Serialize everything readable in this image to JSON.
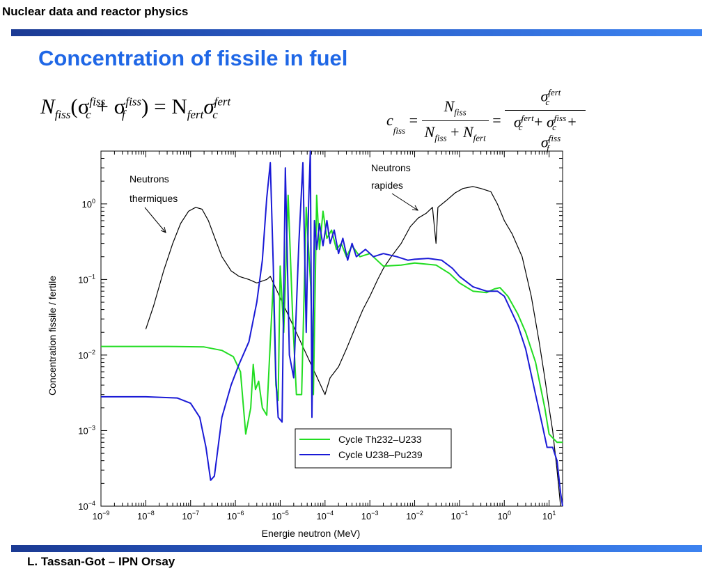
{
  "header": {
    "title": "Nuclear data and reactor physics"
  },
  "slide_title": "Concentration of fissile in fuel",
  "equations": {
    "eq1": {
      "lhs_N": "N",
      "lhs_N_sub": "fiss",
      "sigma1_sup": "fiss",
      "sigma1_sub": "c",
      "sigma2_sup": "fiss",
      "sigma2_sub": "f",
      "rhs_N_sub": "fert",
      "rhs_sigma_sup": "fert",
      "rhs_sigma_sub": "c"
    },
    "eq2": {
      "c_sub": "fiss",
      "num1": "N",
      "num1_sub": "fiss",
      "den1a_sub": "fiss",
      "den1b_sub": "fert",
      "num2_sup": "fert",
      "num2_sub": "c",
      "den2a_sup": "fert",
      "den2a_sub": "c",
      "den2b_sup": "fiss",
      "den2b_sub": "c",
      "den2c_sup": "fiss",
      "den2c_sub": "f"
    }
  },
  "footer": {
    "author": "L. Tassan-Got – IPN Orsay"
  },
  "chart_data": {
    "type": "line",
    "xlabel": "Energie neutron (MeV)",
    "ylabel": "Concentration fissile / fertile",
    "xscale": "log",
    "yscale": "log",
    "xlim": [
      1e-09,
      20
    ],
    "ylim": [
      0.0001,
      5
    ],
    "x_ticks": [
      {
        "base": "10",
        "exp": "−9"
      },
      {
        "base": "10",
        "exp": "−8"
      },
      {
        "base": "10",
        "exp": "−7"
      },
      {
        "base": "10",
        "exp": "−6"
      },
      {
        "base": "10",
        "exp": "−5"
      },
      {
        "base": "10",
        "exp": "−4"
      },
      {
        "base": "10",
        "exp": "−3"
      },
      {
        "base": "10",
        "exp": "−2"
      },
      {
        "base": "10",
        "exp": "−1"
      },
      {
        "base": "10",
        "exp": "0"
      },
      {
        "base": "10",
        "exp": "1"
      }
    ],
    "y_ticks": [
      {
        "base": "10",
        "exp": "0"
      },
      {
        "base": "10",
        "exp": "−1"
      },
      {
        "base": "10",
        "exp": "−2"
      },
      {
        "base": "10",
        "exp": "−3"
      },
      {
        "base": "10",
        "exp": "−4"
      }
    ],
    "annotations": [
      {
        "line1": "Neutrons",
        "line2": "thermiques"
      },
      {
        "line1": "Neutrons",
        "line2": "rapides"
      }
    ],
    "legend_position": "center-bottom",
    "series": [
      {
        "name": "Cycle Th232–U233",
        "color": "#22dd22",
        "points": [
          [
            1e-09,
            0.013
          ],
          [
            3e-08,
            0.013
          ],
          [
            2e-07,
            0.0128
          ],
          [
            5e-07,
            0.0115
          ],
          [
            9e-07,
            0.0095
          ],
          [
            1.3e-06,
            0.006
          ],
          [
            1.7e-06,
            0.0009
          ],
          [
            2.2e-06,
            0.002
          ],
          [
            2.5e-06,
            0.0075
          ],
          [
            2.8e-06,
            0.0035
          ],
          [
            3.3e-06,
            0.0045
          ],
          [
            4e-06,
            0.002
          ],
          [
            5e-06,
            0.0016
          ],
          [
            6e-06,
            0.015
          ],
          [
            7e-06,
            0.09
          ],
          [
            8e-06,
            0.004
          ],
          [
            9e-06,
            0.0025
          ],
          [
            1e-05,
            0.15
          ],
          [
            1.2e-05,
            0.02
          ],
          [
            1.5e-05,
            1.3
          ],
          [
            1.9e-05,
            0.03
          ],
          [
            2.3e-05,
            0.003
          ],
          [
            3e-05,
            0.003
          ],
          [
            3.8e-05,
            0.9
          ],
          [
            4.8e-05,
            0.08
          ],
          [
            5.5e-05,
            0.003
          ],
          [
            6.5e-05,
            1.3
          ],
          [
            7.5e-05,
            0.25
          ],
          [
            9e-05,
            0.8
          ],
          [
            0.00011,
            0.35
          ],
          [
            0.00014,
            0.45
          ],
          [
            0.00018,
            0.25
          ],
          [
            0.00023,
            0.3
          ],
          [
            0.0003,
            0.2
          ],
          [
            0.0004,
            0.28
          ],
          [
            0.0006,
            0.2
          ],
          [
            0.001,
            0.22
          ],
          [
            0.002,
            0.15
          ],
          [
            0.005,
            0.155
          ],
          [
            0.01,
            0.165
          ],
          [
            0.03,
            0.155
          ],
          [
            0.06,
            0.12
          ],
          [
            0.1,
            0.09
          ],
          [
            0.2,
            0.07
          ],
          [
            0.4,
            0.067
          ],
          [
            0.6,
            0.075
          ],
          [
            0.8,
            0.078
          ],
          [
            1.2,
            0.06
          ],
          [
            2,
            0.035
          ],
          [
            3,
            0.02
          ],
          [
            5,
            0.008
          ],
          [
            8,
            0.002
          ],
          [
            10,
            0.0009
          ],
          [
            15,
            0.0007
          ],
          [
            20,
            0.0007
          ]
        ]
      },
      {
        "name": "Cycle U238–Pu239",
        "color": "#1a1ad6",
        "points": [
          [
            1e-09,
            0.0028
          ],
          [
            1e-08,
            0.0028
          ],
          [
            5e-08,
            0.0027
          ],
          [
            1e-07,
            0.0023
          ],
          [
            1.6e-07,
            0.0015
          ],
          [
            2.2e-07,
            0.0006
          ],
          [
            2.8e-07,
            0.00022
          ],
          [
            3.4e-07,
            0.00025
          ],
          [
            5e-07,
            0.0015
          ],
          [
            8e-07,
            0.004
          ],
          [
            1.2e-06,
            0.0075
          ],
          [
            2e-06,
            0.015
          ],
          [
            3e-06,
            0.05
          ],
          [
            4e-06,
            0.18
          ],
          [
            5e-06,
            1.2
          ],
          [
            6e-06,
            3.5
          ],
          [
            7e-06,
            0.15
          ],
          [
            8e-06,
            0.005
          ],
          [
            9e-06,
            0.0015
          ],
          [
            1.1e-05,
            0.0013
          ],
          [
            1.3e-05,
            3.0
          ],
          [
            1.6e-05,
            0.01
          ],
          [
            2e-05,
            0.005
          ],
          [
            2.6e-05,
            0.3
          ],
          [
            3.2e-05,
            3.5
          ],
          [
            3.8e-05,
            0.02
          ],
          [
            4.3e-05,
            1.0
          ],
          [
            4.7e-05,
            5
          ],
          [
            5.1e-05,
            0.0015
          ],
          [
            5.8e-05,
            0.6
          ],
          [
            6.5e-05,
            0.25
          ],
          [
            7.5e-05,
            0.55
          ],
          [
            9e-05,
            0.28
          ],
          [
            0.00011,
            0.6
          ],
          [
            0.00013,
            0.3
          ],
          [
            0.00016,
            0.45
          ],
          [
            0.0002,
            0.22
          ],
          [
            0.00025,
            0.35
          ],
          [
            0.00032,
            0.18
          ],
          [
            0.0004,
            0.3
          ],
          [
            0.0005,
            0.2
          ],
          [
            0.0008,
            0.25
          ],
          [
            0.0012,
            0.2
          ],
          [
            0.002,
            0.22
          ],
          [
            0.004,
            0.2
          ],
          [
            0.007,
            0.18
          ],
          [
            0.01,
            0.185
          ],
          [
            0.02,
            0.19
          ],
          [
            0.04,
            0.18
          ],
          [
            0.07,
            0.14
          ],
          [
            0.1,
            0.11
          ],
          [
            0.2,
            0.08
          ],
          [
            0.4,
            0.07
          ],
          [
            0.7,
            0.07
          ],
          [
            1,
            0.06
          ],
          [
            2,
            0.025
          ],
          [
            3,
            0.012
          ],
          [
            5,
            0.003
          ],
          [
            7,
            0.0012
          ],
          [
            9,
            0.0006
          ],
          [
            12,
            0.0006
          ],
          [
            15,
            0.0004
          ],
          [
            18,
            0.00015
          ],
          [
            20,
            0.0001
          ]
        ]
      },
      {
        "name": "",
        "color": "#000000",
        "points": [
          [
            1e-08,
            0.022
          ],
          [
            1.5e-08,
            0.045
          ],
          [
            2.5e-08,
            0.13
          ],
          [
            4e-08,
            0.3
          ],
          [
            6e-08,
            0.55
          ],
          [
            9e-08,
            0.8
          ],
          [
            1.3e-07,
            0.9
          ],
          [
            1.8e-07,
            0.85
          ],
          [
            2.5e-07,
            0.6
          ],
          [
            3.5e-07,
            0.35
          ],
          [
            5e-07,
            0.2
          ],
          [
            8e-07,
            0.13
          ],
          [
            1.2e-06,
            0.11
          ],
          [
            2e-06,
            0.1
          ],
          [
            3e-06,
            0.09
          ],
          [
            5e-06,
            0.1
          ],
          [
            6e-06,
            0.11
          ],
          [
            0.0001,
            0.003
          ],
          [
            0.00013,
            0.005
          ],
          [
            0.0002,
            0.007
          ],
          [
            0.0003,
            0.012
          ],
          [
            0.0005,
            0.025
          ],
          [
            0.0007,
            0.04
          ],
          [
            0.001,
            0.06
          ],
          [
            0.0015,
            0.1
          ],
          [
            0.002,
            0.14
          ],
          [
            0.003,
            0.2
          ],
          [
            0.005,
            0.3
          ],
          [
            0.008,
            0.5
          ],
          [
            0.012,
            0.65
          ],
          [
            0.018,
            0.75
          ],
          [
            0.025,
            0.9
          ],
          [
            0.03,
            0.3
          ],
          [
            0.033,
            0.9
          ],
          [
            0.05,
            1.1
          ],
          [
            0.08,
            1.4
          ],
          [
            0.12,
            1.6
          ],
          [
            0.2,
            1.7
          ],
          [
            0.3,
            1.6
          ],
          [
            0.5,
            1.45
          ],
          [
            0.7,
            1.0
          ],
          [
            1,
            0.6
          ],
          [
            1.5,
            0.4
          ],
          [
            2.5,
            0.2
          ],
          [
            4,
            0.06
          ],
          [
            6,
            0.015
          ],
          [
            8,
            0.005
          ],
          [
            10,
            0.002
          ],
          [
            12,
            0.001
          ],
          [
            15,
            0.0003
          ],
          [
            18,
            0.0001
          ]
        ]
      }
    ]
  }
}
